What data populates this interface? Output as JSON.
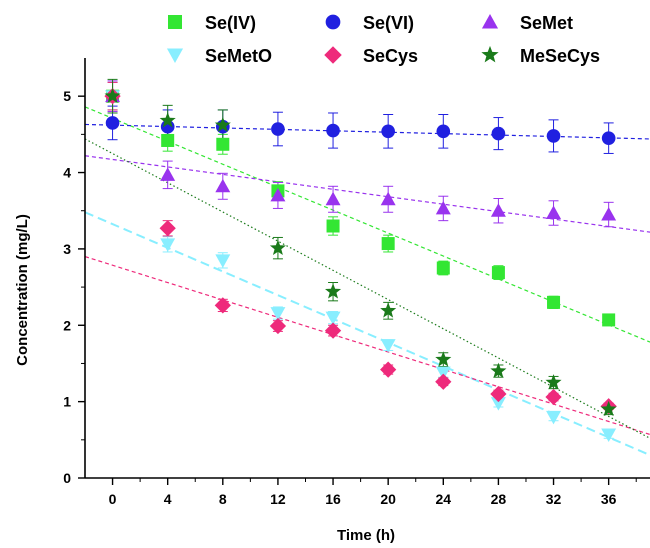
{
  "chart_data": {
    "type": "scatter",
    "xlabel": "Time (h)",
    "ylabel": "Concentration (mg/L)",
    "xlim": [
      -2,
      39
    ],
    "ylim": [
      0,
      5.5
    ],
    "xticks": [
      "0",
      "4",
      "8",
      "12",
      "16",
      "20",
      "24",
      "28",
      "32",
      "36"
    ],
    "yticks": [
      "0",
      "1",
      "2",
      "3",
      "4",
      "5"
    ],
    "legend_position": "top",
    "grid": false,
    "series": [
      {
        "name": "Se(IV)",
        "color": "#33e633",
        "marker": "square",
        "points": [
          [
            0,
            5.0
          ],
          [
            4,
            4.42
          ],
          [
            8,
            4.37
          ],
          [
            12,
            3.76
          ],
          [
            16,
            3.3
          ],
          [
            20,
            3.07
          ],
          [
            24,
            2.75
          ],
          [
            28,
            2.69
          ],
          [
            32,
            2.3
          ],
          [
            36,
            2.07
          ]
        ],
        "errors": [
          0.18,
          0.14,
          0.13,
          0.12,
          0.12,
          0.11,
          0.09,
          0.09,
          0.08,
          0.07
        ],
        "trend": [
          [
            -2,
            4.86
          ],
          [
            39,
            1.78
          ]
        ],
        "trend_style": "dashed"
      },
      {
        "name": "Se(VI)",
        "color": "#2020e0",
        "marker": "circle",
        "points": [
          [
            0,
            4.65
          ],
          [
            4,
            4.6
          ],
          [
            8,
            4.6
          ],
          [
            12,
            4.57
          ],
          [
            16,
            4.55
          ],
          [
            20,
            4.54
          ],
          [
            24,
            4.54
          ],
          [
            28,
            4.51
          ],
          [
            32,
            4.48
          ],
          [
            36,
            4.45
          ]
        ],
        "errors": [
          0.22,
          0.22,
          0.22,
          0.22,
          0.23,
          0.22,
          0.22,
          0.21,
          0.21,
          0.2
        ],
        "trend": [
          [
            -2,
            4.63
          ],
          [
            39,
            4.44
          ]
        ],
        "trend_style": "dashed"
      },
      {
        "name": "SeMet",
        "color": "#9933ee",
        "marker": "triangle-up",
        "points": [
          [
            0,
            5.0
          ],
          [
            4,
            3.97
          ],
          [
            8,
            3.82
          ],
          [
            12,
            3.7
          ],
          [
            16,
            3.65
          ],
          [
            20,
            3.65
          ],
          [
            24,
            3.53
          ],
          [
            28,
            3.5
          ],
          [
            32,
            3.47
          ],
          [
            36,
            3.45
          ]
        ],
        "errors": [
          0.2,
          0.18,
          0.17,
          0.17,
          0.17,
          0.17,
          0.16,
          0.16,
          0.16,
          0.16
        ],
        "trend": [
          [
            -2,
            4.22
          ],
          [
            39,
            3.22
          ]
        ],
        "trend_style": "dashed"
      },
      {
        "name": "SeMetO",
        "color": "#88eeff",
        "marker": "triangle-down",
        "points": [
          [
            0,
            5.0
          ],
          [
            4,
            3.06
          ],
          [
            8,
            2.85
          ],
          [
            12,
            2.16
          ],
          [
            16,
            2.1
          ],
          [
            20,
            1.74
          ],
          [
            24,
            1.38
          ],
          [
            28,
            0.98
          ],
          [
            32,
            0.8
          ],
          [
            36,
            0.57
          ]
        ],
        "errors": [
          0.18,
          0.1,
          0.1,
          0.08,
          0.08,
          0.07,
          0.06,
          0.05,
          0.05,
          0.05
        ],
        "trend": [
          [
            -2,
            3.48
          ],
          [
            39,
            0.3
          ]
        ],
        "trend_style": "long-dash"
      },
      {
        "name": "SeCys",
        "color": "#ee2a7b",
        "marker": "diamond",
        "points": [
          [
            0,
            5.0
          ],
          [
            4,
            3.27
          ],
          [
            8,
            2.26
          ],
          [
            12,
            1.99
          ],
          [
            16,
            1.93
          ],
          [
            20,
            1.42
          ],
          [
            24,
            1.26
          ],
          [
            28,
            1.1
          ],
          [
            32,
            1.06
          ],
          [
            36,
            0.94
          ]
        ],
        "errors": [
          0.18,
          0.1,
          0.08,
          0.07,
          0.07,
          0.06,
          0.05,
          0.05,
          0.05,
          0.04
        ],
        "trend": [
          [
            -2,
            2.9
          ],
          [
            39,
            0.57
          ]
        ],
        "trend_style": "dashed"
      },
      {
        "name": "MeSeCys",
        "color": "#1a7a1a",
        "marker": "star",
        "points": [
          [
            0,
            5.0
          ],
          [
            4,
            4.68
          ],
          [
            8,
            4.62
          ],
          [
            12,
            3.01
          ],
          [
            16,
            2.44
          ],
          [
            20,
            2.19
          ],
          [
            24,
            1.55
          ],
          [
            28,
            1.4
          ],
          [
            32,
            1.25
          ],
          [
            36,
            0.9
          ]
        ],
        "errors": [
          0.22,
          0.2,
          0.2,
          0.14,
          0.12,
          0.11,
          0.09,
          0.08,
          0.08,
          0.07
        ],
        "trend": [
          [
            -2,
            4.44
          ],
          [
            39,
            0.52
          ]
        ],
        "trend_style": "dotted"
      }
    ]
  }
}
